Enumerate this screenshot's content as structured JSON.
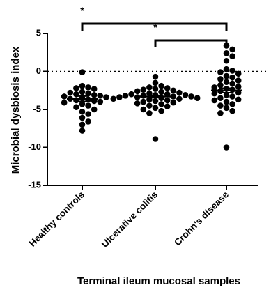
{
  "chart_data": {
    "type": "scatter",
    "title": "",
    "xlabel": "Terminal ileum mucosal samples",
    "ylabel": "Microbial dysbiosis index",
    "ylim": [
      -15,
      5
    ],
    "yticks": [
      "5",
      "0",
      "-5",
      "-10",
      "-15"
    ],
    "ytick_values": [
      5,
      0,
      -5,
      -10,
      -15
    ],
    "reference_line": 0,
    "categories": [
      "Healthy controls",
      "Ulcerative colitis",
      "Crohn's disease"
    ],
    "series": [
      {
        "category": "Healthy controls",
        "mean": -3.6,
        "sem": 0.35,
        "values": [
          -0.1,
          -1.9,
          -2.1,
          -2.2,
          -2.3,
          -2.7,
          -2.8,
          -2.9,
          -3.0,
          -3.1,
          -3.2,
          -3.3,
          -3.4,
          -3.5,
          -3.6,
          -3.7,
          -3.8,
          -3.9,
          -4.0,
          -4.1,
          -4.3,
          -4.5,
          -4.7,
          -5.0,
          -5.3,
          -5.6,
          -6.1,
          -6.6,
          -7.0,
          -7.8
        ]
      },
      {
        "category": "Ulcerative colitis",
        "mean": -3.3,
        "sem": 0.15,
        "values": [
          -0.7,
          -1.5,
          -1.9,
          -2.1,
          -2.2,
          -2.3,
          -2.4,
          -2.5,
          -2.6,
          -2.7,
          -2.8,
          -2.9,
          -3.0,
          -3.0,
          -3.1,
          -3.1,
          -3.2,
          -3.2,
          -3.3,
          -3.3,
          -3.4,
          -3.4,
          -3.5,
          -3.5,
          -3.6,
          -3.6,
          -3.7,
          -3.8,
          -3.9,
          -4.0,
          -4.1,
          -4.2,
          -4.3,
          -4.5,
          -4.6,
          -4.8,
          -5.0,
          -5.2,
          -5.5,
          -8.9
        ]
      },
      {
        "category": "Crohn's disease",
        "mean": -2.5,
        "sem": 0.3,
        "values": [
          3.4,
          2.9,
          2.4,
          2.0,
          1.4,
          0.3,
          0.1,
          -0.1,
          -0.3,
          -0.6,
          -0.8,
          -1.0,
          -1.2,
          -1.4,
          -1.6,
          -1.8,
          -2.0,
          -2.1,
          -2.3,
          -2.4,
          -2.6,
          -2.8,
          -2.9,
          -3.1,
          -3.3,
          -3.5,
          -3.7,
          -3.8,
          -4.0,
          -4.3,
          -4.5,
          -4.8,
          -5.2,
          -5.5,
          -10.0
        ]
      }
    ],
    "significance": [
      {
        "from": "Healthy controls",
        "to": "Crohn's disease",
        "label": "*"
      },
      {
        "from": "Ulcerative colitis",
        "to": "Crohn's disease",
        "label": "*"
      }
    ]
  }
}
